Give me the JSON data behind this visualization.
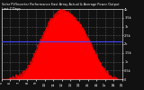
{
  "title": "Solar PV/Inverter Performance East Array Actual & Average Power Output",
  "subtitle": "Last 7 Days",
  "bg_color": "#111111",
  "plot_bg_color": "#111111",
  "grid_color": "#ffffff",
  "fill_color": "#ff0000",
  "line_color": "#ff0000",
  "avg_line_color": "#4444ff",
  "avg_value": 0.54,
  "ylim": [
    0,
    1.0
  ],
  "right_ytick_labels": [
    "4k",
    "3.5k",
    "3k",
    "2.5k",
    "2k",
    "1.5k",
    "1k",
    "0.5k",
    "0"
  ],
  "x_tick_labels": [
    "5",
    "6",
    "7",
    "8",
    "9",
    "10",
    "11",
    "12",
    "13",
    "14",
    "15",
    "16",
    "17",
    "18",
    "19"
  ],
  "curve_data_x": [
    0.0,
    0.04,
    0.09,
    0.14,
    0.19,
    0.24,
    0.28,
    0.32,
    0.36,
    0.4,
    0.44,
    0.47,
    0.5,
    0.53,
    0.56,
    0.6,
    0.64,
    0.68,
    0.72,
    0.76,
    0.8,
    0.84,
    0.88,
    0.91,
    0.94,
    0.97,
    1.0
  ],
  "curve_data_y": [
    0.0,
    0.0,
    0.01,
    0.04,
    0.1,
    0.22,
    0.38,
    0.55,
    0.7,
    0.82,
    0.91,
    0.96,
    0.98,
    0.97,
    0.94,
    0.88,
    0.8,
    0.7,
    0.57,
    0.42,
    0.28,
    0.16,
    0.07,
    0.03,
    0.01,
    0.0,
    0.0
  ]
}
